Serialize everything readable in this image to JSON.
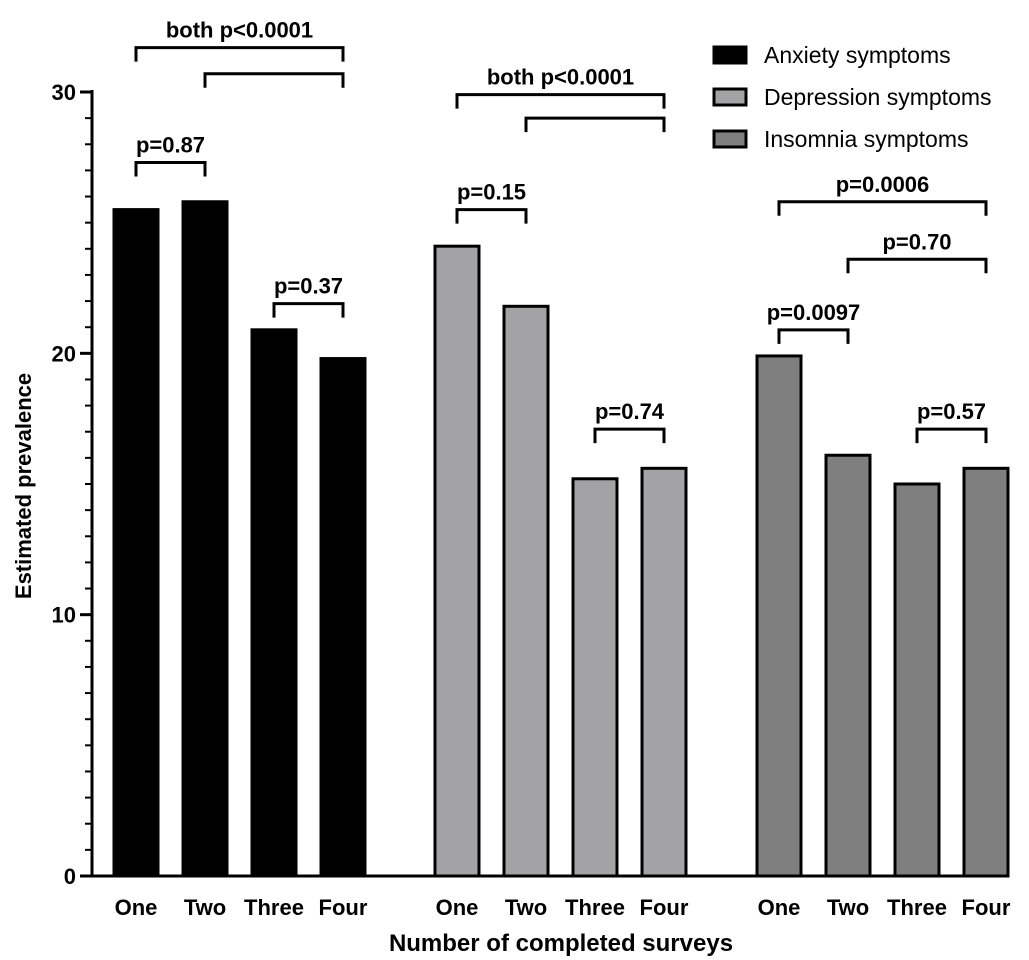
{
  "chart_data": {
    "type": "bar",
    "xlabel": "Number of completed surveys",
    "ylabel": "Estimated prevalence",
    "ylim": [
      0,
      30
    ],
    "yticks": [
      0,
      10,
      20,
      30
    ],
    "grid": false,
    "legend_position": "top-right",
    "categories": [
      "One",
      "Two",
      "Three",
      "Four"
    ],
    "series": [
      {
        "name": "Anxiety symptoms",
        "color": "#000000",
        "values": [
          25.5,
          25.8,
          20.9,
          19.8
        ]
      },
      {
        "name": "Depression symptoms",
        "color": "#a3a3a6",
        "values": [
          24.1,
          21.8,
          15.2,
          15.6
        ]
      },
      {
        "name": "Insomnia symptoms",
        "color": "#7f7f7f",
        "values": [
          19.9,
          16.1,
          15.0,
          15.6
        ]
      }
    ],
    "annotations": [
      {
        "series": 0,
        "from": 0,
        "to": 1,
        "label": "p=0.87",
        "y": 27.3
      },
      {
        "series": 0,
        "from": 2,
        "to": 3,
        "label": "p=0.37",
        "y": 21.9
      },
      {
        "series": 0,
        "from": 0,
        "to": 3,
        "label": "both p<0.0001",
        "y": 31.7
      },
      {
        "series": 0,
        "from": 1,
        "to": 3,
        "label": "",
        "y": 30.7
      },
      {
        "series": 1,
        "from": 0,
        "to": 1,
        "label": "p=0.15",
        "y": 25.5
      },
      {
        "series": 1,
        "from": 2,
        "to": 3,
        "label": "p=0.74",
        "y": 17.1
      },
      {
        "series": 1,
        "from": 0,
        "to": 3,
        "label": "both p<0.0001",
        "y": 29.9
      },
      {
        "series": 1,
        "from": 1,
        "to": 3,
        "label": "",
        "y": 29.0
      },
      {
        "series": 2,
        "from": 0,
        "to": 1,
        "label": "p=0.0097",
        "y": 20.9
      },
      {
        "series": 2,
        "from": 2,
        "to": 3,
        "label": "p=0.57",
        "y": 17.1
      },
      {
        "series": 2,
        "from": 0,
        "to": 3,
        "label": "p=0.0006",
        "y": 25.8
      },
      {
        "series": 2,
        "from": 1,
        "to": 3,
        "label": "p=0.70",
        "y": 23.6
      }
    ]
  }
}
